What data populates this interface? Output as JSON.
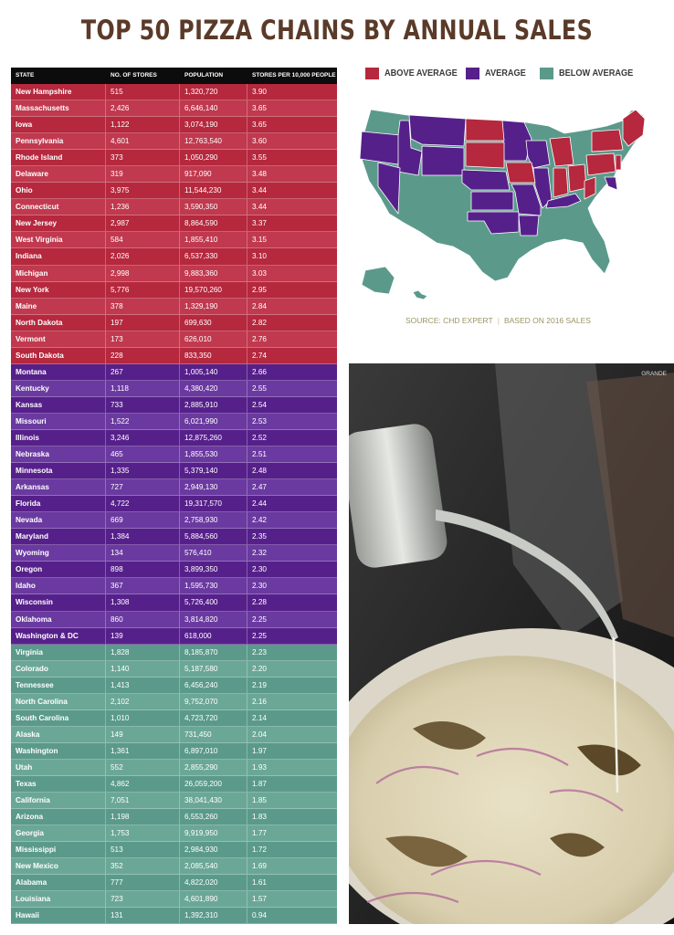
{
  "title": "TOP 50 PIZZA CHAINS BY ANNUAL SALES",
  "colors": {
    "above": "#b5283d",
    "average": "#56208a",
    "below": "#5b9a8b",
    "title": "#5a3a28"
  },
  "legend": {
    "above": "ABOVE AVERAGE",
    "average": "AVERAGE",
    "below": "BELOW AVERAGE"
  },
  "source": {
    "left": "SOURCE: CHD EXPERT",
    "right": "BASED ON 2016 SALES"
  },
  "photo_credit": "GRANDE",
  "table": {
    "headers": [
      "STATE",
      "NO. OF STORES",
      "POPULATION",
      "STORES PER 10,000 PEOPLE"
    ],
    "rows": [
      {
        "state": "New Hampshire",
        "stores": "515",
        "population": "1,320,720",
        "per10k": "3.90",
        "group": "above"
      },
      {
        "state": "Massachusetts",
        "stores": "2,426",
        "population": "6,646,140",
        "per10k": "3.65",
        "group": "above"
      },
      {
        "state": "Iowa",
        "stores": "1,122",
        "population": "3,074,190",
        "per10k": "3.65",
        "group": "above"
      },
      {
        "state": "Pennsylvania",
        "stores": "4,601",
        "population": "12,763,540",
        "per10k": "3.60",
        "group": "above"
      },
      {
        "state": "Rhode Island",
        "stores": "373",
        "population": "1,050,290",
        "per10k": "3.55",
        "group": "above"
      },
      {
        "state": "Delaware",
        "stores": "319",
        "population": "917,090",
        "per10k": "3.48",
        "group": "above"
      },
      {
        "state": "Ohio",
        "stores": "3,975",
        "population": "11,544,230",
        "per10k": "3.44",
        "group": "above"
      },
      {
        "state": "Connecticut",
        "stores": "1,236",
        "population": "3,590,350",
        "per10k": "3.44",
        "group": "above"
      },
      {
        "state": "New Jersey",
        "stores": "2,987",
        "population": "8,864,590",
        "per10k": "3.37",
        "group": "above"
      },
      {
        "state": "West Virginia",
        "stores": "584",
        "population": "1,855,410",
        "per10k": "3.15",
        "group": "above"
      },
      {
        "state": "Indiana",
        "stores": "2,026",
        "population": "6,537,330",
        "per10k": "3.10",
        "group": "above"
      },
      {
        "state": "Michigan",
        "stores": "2,998",
        "population": "9,883,360",
        "per10k": "3.03",
        "group": "above"
      },
      {
        "state": "New York",
        "stores": "5,776",
        "population": "19,570,260",
        "per10k": "2.95",
        "group": "above"
      },
      {
        "state": "Maine",
        "stores": "378",
        "population": "1,329,190",
        "per10k": "2.84",
        "group": "above"
      },
      {
        "state": "North Dakota",
        "stores": "197",
        "population": "699,630",
        "per10k": "2.82",
        "group": "above"
      },
      {
        "state": "Vermont",
        "stores": "173",
        "population": "626,010",
        "per10k": "2.76",
        "group": "above"
      },
      {
        "state": "South Dakota",
        "stores": "228",
        "population": "833,350",
        "per10k": "2.74",
        "group": "above"
      },
      {
        "state": "Montana",
        "stores": "267",
        "population": "1,005,140",
        "per10k": "2.66",
        "group": "average"
      },
      {
        "state": "Kentucky",
        "stores": "1,118",
        "population": "4,380,420",
        "per10k": "2.55",
        "group": "average"
      },
      {
        "state": "Kansas",
        "stores": "733",
        "population": "2,885,910",
        "per10k": "2.54",
        "group": "average"
      },
      {
        "state": "Missouri",
        "stores": "1,522",
        "population": "6,021,990",
        "per10k": "2.53",
        "group": "average"
      },
      {
        "state": "Illinois",
        "stores": "3,246",
        "population": "12,875,260",
        "per10k": "2.52",
        "group": "average"
      },
      {
        "state": "Nebraska",
        "stores": "465",
        "population": "1,855,530",
        "per10k": "2.51",
        "group": "average"
      },
      {
        "state": "Minnesota",
        "stores": "1,335",
        "population": "5,379,140",
        "per10k": "2.48",
        "group": "average"
      },
      {
        "state": "Arkansas",
        "stores": "727",
        "population": "2,949,130",
        "per10k": "2.47",
        "group": "average"
      },
      {
        "state": "Florida",
        "stores": "4,722",
        "population": "19,317,570",
        "per10k": "2.44",
        "group": "average"
      },
      {
        "state": "Nevada",
        "stores": "669",
        "population": "2,758,930",
        "per10k": "2.42",
        "group": "average"
      },
      {
        "state": "Maryland",
        "stores": "1,384",
        "population": "5,884,560",
        "per10k": "2.35",
        "group": "average"
      },
      {
        "state": "Wyoming",
        "stores": "134",
        "population": "576,410",
        "per10k": "2.32",
        "group": "average"
      },
      {
        "state": "Oregon",
        "stores": "898",
        "population": "3,899,350",
        "per10k": "2.30",
        "group": "average"
      },
      {
        "state": "Idaho",
        "stores": "367",
        "population": "1,595,730",
        "per10k": "2.30",
        "group": "average"
      },
      {
        "state": "Wisconsin",
        "stores": "1,308",
        "population": "5,726,400",
        "per10k": "2.28",
        "group": "average"
      },
      {
        "state": "Oklahoma",
        "stores": "860",
        "population": "3,814,820",
        "per10k": "2.25",
        "group": "average"
      },
      {
        "state": "Washington & DC",
        "stores": "139",
        "population": "618,000",
        "per10k": "2.25",
        "group": "average"
      },
      {
        "state": "Virginia",
        "stores": "1,828",
        "population": "8,185,870",
        "per10k": "2.23",
        "group": "below"
      },
      {
        "state": "Colorado",
        "stores": "1,140",
        "population": "5,187,580",
        "per10k": "2.20",
        "group": "below"
      },
      {
        "state": "Tennessee",
        "stores": "1,413",
        "population": "6,456,240",
        "per10k": "2.19",
        "group": "below"
      },
      {
        "state": "North Carolina",
        "stores": "2,102",
        "population": "9,752,070",
        "per10k": "2.16",
        "group": "below"
      },
      {
        "state": "South Carolina",
        "stores": "1,010",
        "population": "4,723,720",
        "per10k": "2.14",
        "group": "below"
      },
      {
        "state": "Alaska",
        "stores": "149",
        "population": "731,450",
        "per10k": "2.04",
        "group": "below"
      },
      {
        "state": " Washington",
        "stores": "1,361",
        "population": "6,897,010",
        "per10k": "1.97",
        "group": "below"
      },
      {
        "state": "Utah",
        "stores": "552",
        "population": "2,855,290",
        "per10k": "1.93",
        "group": "below"
      },
      {
        "state": "Texas",
        "stores": "4,862",
        "population": "26,059,200",
        "per10k": "1.87",
        "group": "below"
      },
      {
        "state": "California",
        "stores": "7,051",
        "population": "38,041,430",
        "per10k": "1.85",
        "group": "below"
      },
      {
        "state": "Arizona",
        "stores": "1,198",
        "population": "6,553,260",
        "per10k": "1.83",
        "group": "below"
      },
      {
        "state": "Georgia",
        "stores": "1,753",
        "population": "9,919,950",
        "per10k": "1.77",
        "group": "below"
      },
      {
        "state": "Mississippi",
        "stores": "513",
        "population": "2,984,930",
        "per10k": "1.72",
        "group": "below"
      },
      {
        "state": "New Mexico",
        "stores": "352",
        "population": "2,085,540",
        "per10k": "1.69",
        "group": "below"
      },
      {
        "state": "Alabama",
        "stores": "777",
        "population": "4,822,020",
        "per10k": "1.61",
        "group": "below"
      },
      {
        "state": "Louisiana",
        "stores": "723",
        "population": "4,601,890",
        "per10k": "1.57",
        "group": "below"
      },
      {
        "state": "Hawaii",
        "stores": "131",
        "population": "1,392,310",
        "per10k": "0.94",
        "group": "below"
      }
    ]
  }
}
